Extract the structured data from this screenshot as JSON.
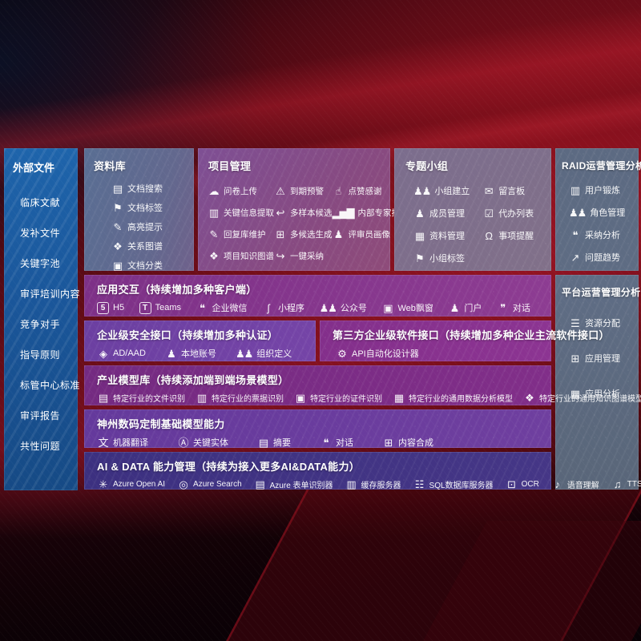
{
  "colors": {
    "background_red": "#6b0d18",
    "streak_red": "#d72337",
    "sidebar_blue": "#1d5fa6",
    "purple_row": "#83338b",
    "violet_row": "#6f41a4",
    "indigo_row": "#3f3381",
    "slate_panel": "#5d6b82",
    "mauve_panel": "#7f5095",
    "text": "#ffffff"
  },
  "sidebar": {
    "title": "外部文件",
    "items": [
      {
        "label": "临床文献"
      },
      {
        "label": "发补文件"
      },
      {
        "label": "关键字池"
      },
      {
        "label": "审评培训内容"
      },
      {
        "label": "竞争对手"
      },
      {
        "label": "指导原则"
      },
      {
        "label": "标管中心标准"
      },
      {
        "label": "审评报告"
      },
      {
        "label": "共性问题"
      }
    ]
  },
  "panels": {
    "library": {
      "title": "资料库",
      "items": [
        {
          "label": "文档搜索",
          "icon": "doc-search-icon",
          "glyph": "▤"
        },
        {
          "label": "文档标签",
          "icon": "tag-icon",
          "glyph": "⚑"
        },
        {
          "label": "高亮提示",
          "icon": "highlight-pen-icon",
          "glyph": "✎"
        },
        {
          "label": "关系图谱",
          "icon": "relation-graph-icon",
          "glyph": "❖"
        },
        {
          "label": "文档分类",
          "icon": "doc-classify-icon",
          "glyph": "▣"
        }
      ]
    },
    "project": {
      "title": "项目管理",
      "items": [
        {
          "label": "问卷上传",
          "icon": "cloud-upload-icon",
          "glyph": "☁"
        },
        {
          "label": "到期预警",
          "icon": "due-alert-icon",
          "glyph": "⚠"
        },
        {
          "label": "点赞感谢",
          "icon": "thumbs-up-icon",
          "glyph": "☝"
        },
        {
          "label": "关键信息提取",
          "icon": "key-info-extract-icon",
          "glyph": "▥"
        },
        {
          "label": "多样本候选",
          "icon": "multi-sample-icon",
          "glyph": "↩"
        },
        {
          "label": "内部专家排名",
          "icon": "expert-ranking-icon",
          "glyph": "▂▅▇"
        },
        {
          "label": "回复库维护",
          "icon": "reply-maintain-icon",
          "glyph": "✎"
        },
        {
          "label": "多候选生成",
          "icon": "multi-candidate-icon",
          "glyph": "⊞"
        },
        {
          "label": "评审员画像",
          "icon": "reviewer-profile-icon",
          "glyph": "♟"
        },
        {
          "label": "项目知识图谱",
          "icon": "project-knowledge-graph-icon",
          "glyph": "❖"
        },
        {
          "label": "一键采纳",
          "icon": "one-click-adopt-icon",
          "glyph": "↪"
        }
      ]
    },
    "groups": {
      "title": "专题小组",
      "items": [
        {
          "label": "小组建立",
          "icon": "group-create-icon",
          "glyph": "♟♟"
        },
        {
          "label": "留言板",
          "icon": "message-board-icon",
          "glyph": "✉"
        },
        {
          "label": "成员管理",
          "icon": "member-manage-icon",
          "glyph": "♟"
        },
        {
          "label": "代办列表",
          "icon": "todo-list-icon",
          "glyph": "☑"
        },
        {
          "label": "资料管理",
          "icon": "material-manage-icon",
          "glyph": "▦"
        },
        {
          "label": "事项提醒",
          "icon": "reminder-bell-icon",
          "glyph": "Ω"
        },
        {
          "label": "小组标签",
          "icon": "group-tag-icon",
          "glyph": "⚑"
        }
      ]
    },
    "raid": {
      "title": "RAID运营管理分析",
      "items": [
        {
          "label": "用户锻炼",
          "icon": "user-card-icon",
          "glyph": "▥"
        },
        {
          "label": "角色管理",
          "icon": "role-manage-icon",
          "glyph": "♟♟"
        },
        {
          "label": "采纳分析",
          "icon": "adoption-analysis-icon",
          "glyph": "❝"
        },
        {
          "label": "问题趋势",
          "icon": "issue-trend-icon",
          "glyph": "↗"
        }
      ]
    },
    "platform": {
      "title": "平台运营管理分析",
      "items": [
        {
          "label": "资源分配",
          "icon": "resource-allocation-icon",
          "glyph": "☰"
        },
        {
          "label": "应用管理",
          "icon": "app-manage-icon",
          "glyph": "⊞"
        },
        {
          "label": "应用分析",
          "icon": "app-analysis-icon",
          "glyph": "▦"
        }
      ]
    }
  },
  "rows": {
    "apps": {
      "title": "应用交互（持续增加多种客户端）",
      "items": [
        {
          "label": "H5",
          "icon": "h5-icon",
          "glyph": "5",
          "tile": true
        },
        {
          "label": "Teams",
          "icon": "teams-icon",
          "glyph": "T",
          "tile": true
        },
        {
          "label": "企业微信",
          "icon": "wecom-icon",
          "glyph": "❝"
        },
        {
          "label": "小程序",
          "icon": "miniprogram-icon",
          "glyph": "ʃ"
        },
        {
          "label": "公众号",
          "icon": "official-account-icon",
          "glyph": "♟♟"
        },
        {
          "label": "Web飘窗",
          "icon": "web-popup-icon",
          "glyph": "▣"
        },
        {
          "label": "门户",
          "icon": "portal-icon",
          "glyph": "♟"
        },
        {
          "label": "对话",
          "icon": "chat-icon",
          "glyph": "❞"
        }
      ]
    },
    "security": {
      "title": "企业级安全接口（持续增加多种认证）",
      "items": [
        {
          "label": "AD/AAD",
          "icon": "ad-aad-icon",
          "glyph": "◈"
        },
        {
          "label": "本地账号",
          "icon": "local-account-icon",
          "glyph": "♟"
        },
        {
          "label": "组织定义",
          "icon": "org-definition-icon",
          "glyph": "♟♟"
        }
      ]
    },
    "third": {
      "title": "第三方企业级软件接口（持续增加多种企业主流软件接口）",
      "items": [
        {
          "label": "API自动化设计器",
          "icon": "api-designer-icon",
          "glyph": "⚙"
        }
      ]
    },
    "models": {
      "title": "产业模型库（持续添加端到端场景模型）",
      "items": [
        {
          "label": "特定行业的文件识别",
          "icon": "industry-file-recognition-icon",
          "glyph": "▤"
        },
        {
          "label": "特定行业的票据识别",
          "icon": "industry-invoice-recognition-icon",
          "glyph": "▥"
        },
        {
          "label": "特定行业的证件识别",
          "icon": "industry-id-recognition-icon",
          "glyph": "▣"
        },
        {
          "label": "特定行业的通用数据分析模型",
          "icon": "industry-data-analysis-icon",
          "glyph": "▦"
        },
        {
          "label": "特定行业的通用知识图谱模型",
          "icon": "industry-knowledge-graph-icon",
          "glyph": "❖"
        }
      ]
    },
    "base": {
      "title": "神州数码定制基础模型能力",
      "items": [
        {
          "label": "机器翻译",
          "icon": "machine-translation-icon",
          "glyph": "文"
        },
        {
          "label": "关键实体",
          "icon": "key-entity-icon",
          "glyph": "Ⓐ"
        },
        {
          "label": "摘要",
          "icon": "summary-icon",
          "glyph": "▤"
        },
        {
          "label": "对话",
          "icon": "dialog-icon",
          "glyph": "❝"
        },
        {
          "label": "内容合成",
          "icon": "content-compose-icon",
          "glyph": "⊞"
        }
      ]
    },
    "aidata": {
      "title": "AI & DATA 能力管理（持续为接入更多AI&DATA能力）",
      "items": [
        {
          "label": "Azure Open AI",
          "icon": "azure-openai-icon",
          "glyph": "✳"
        },
        {
          "label": "Azure Search",
          "icon": "azure-search-icon",
          "glyph": "◎"
        },
        {
          "label": "Azure 表单识别器",
          "icon": "form-recognizer-icon",
          "glyph": "▤"
        },
        {
          "label": "缓存服务器",
          "icon": "cache-server-icon",
          "glyph": "▥"
        },
        {
          "label": "SQL数据库服务器",
          "icon": "sql-database-icon",
          "glyph": "☷"
        },
        {
          "label": "OCR",
          "icon": "ocr-icon",
          "glyph": "⊡"
        },
        {
          "label": "语音理解",
          "icon": "speech-understanding-icon",
          "glyph": "♪"
        },
        {
          "label": "TTS",
          "icon": "tts-icon",
          "glyph": "♫"
        }
      ]
    }
  }
}
